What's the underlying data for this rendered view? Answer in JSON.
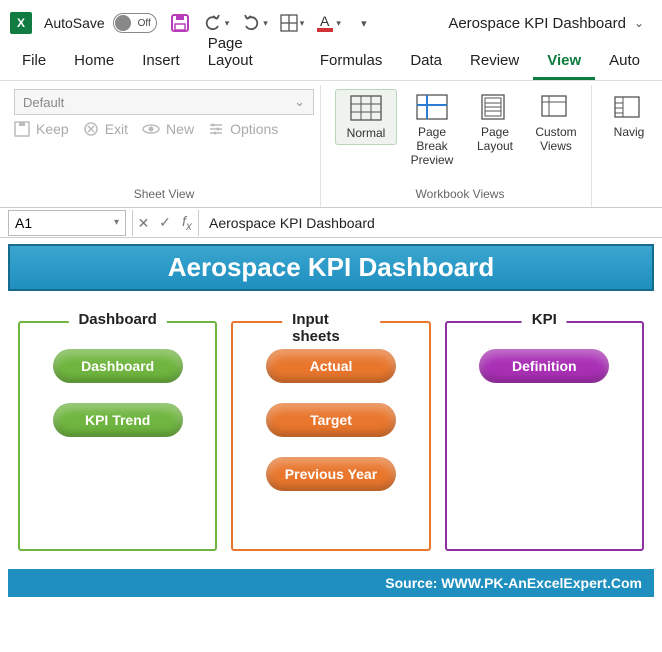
{
  "qat": {
    "autosave_label": "AutoSave",
    "autosave_state": "Off",
    "doc_title": "Aerospace KPI Dashboard",
    "icons": {
      "save_color": "#b83dba",
      "font_underline_color": "#d13438"
    }
  },
  "tabs": {
    "items": [
      "File",
      "Home",
      "Insert",
      "Page Layout",
      "Formulas",
      "Data",
      "Review",
      "View",
      "Auto"
    ],
    "active_index": 7,
    "active_color": "#0f7b3e"
  },
  "ribbon": {
    "sheet_view": {
      "select_placeholder": "Default",
      "keep": "Keep",
      "exit": "Exit",
      "new": "New",
      "options": "Options",
      "group_label": "Sheet View"
    },
    "workbook_views": {
      "normal": "Normal",
      "page_break": "Page Break Preview",
      "page_layout": "Page Layout",
      "custom": "Custom Views",
      "navig": "Navig",
      "group_label": "Workbook Views"
    }
  },
  "formula_bar": {
    "cell_ref": "A1",
    "formula": "Aerospace KPI Dashboard"
  },
  "worksheet": {
    "title": "Aerospace KPI Dashboard",
    "title_bg_from": "#3aa6d0",
    "title_bg_to": "#1f8fbf",
    "panels": [
      {
        "label": "Dashboard",
        "border_color": "#6fb53f",
        "pill_color": "#6fb53f",
        "items": [
          "Dashboard",
          "KPI Trend"
        ]
      },
      {
        "label": "Input sheets",
        "border_color": "#e8762d",
        "pill_color": "#e8762d",
        "items": [
          "Actual",
          "Target",
          "Previous Year"
        ]
      },
      {
        "label": "KPI",
        "border_color": "#8e2fa0",
        "pill_color": "#a92fb5",
        "items": [
          "Definition"
        ]
      }
    ],
    "footer": "Source: WWW.PK-AnExcelExpert.Com",
    "footer_bg": "#1f8fbf"
  }
}
